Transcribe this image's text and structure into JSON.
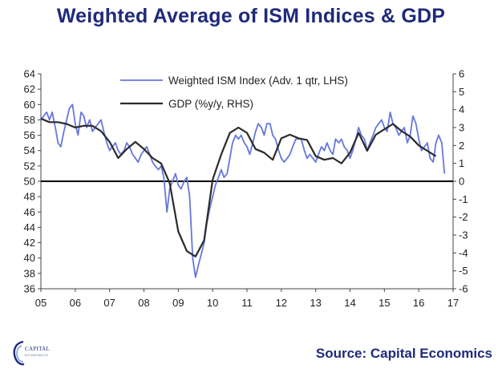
{
  "title": "Weighted Average of ISM Indices & GDP",
  "source": "Source: Capital Economics",
  "logo": {
    "text": "CAPITAL",
    "subtext": "ECONOMICS",
    "color": "#1f2a7a"
  },
  "chart_data": {
    "type": "line",
    "title": "Weighted Average of ISM Indices & GDP",
    "x_range": [
      2005.0,
      2017.0
    ],
    "x_tick_labels": [
      "05",
      "06",
      "07",
      "08",
      "09",
      "10",
      "11",
      "12",
      "13",
      "14",
      "15",
      "16",
      "17"
    ],
    "x_tick_values": [
      2005,
      2006,
      2007,
      2008,
      2009,
      2010,
      2011,
      2012,
      2013,
      2014,
      2015,
      2016,
      2017
    ],
    "y_left": {
      "range": [
        36,
        64
      ],
      "ticks": [
        36,
        38,
        40,
        42,
        44,
        46,
        48,
        50,
        52,
        54,
        56,
        58,
        60,
        62,
        64
      ]
    },
    "y_right": {
      "range": [
        -6,
        6
      ],
      "ticks": [
        -6,
        -5,
        -4,
        -3,
        -2,
        -1,
        0,
        1,
        2,
        3,
        4,
        5,
        6
      ]
    },
    "reference_line": {
      "axis": "left",
      "value": 50
    },
    "legend_placement": "top-center",
    "grid": false,
    "series": [
      {
        "name": "Weighted ISM Index (Adv. 1 qtr, LHS)",
        "axis": "left",
        "color": "#6677dd",
        "x": [
          2005.0,
          2005.08,
          2005.17,
          2005.25,
          2005.33,
          2005.42,
          2005.5,
          2005.58,
          2005.67,
          2005.75,
          2005.83,
          2005.92,
          2006.0,
          2006.08,
          2006.17,
          2006.25,
          2006.33,
          2006.42,
          2006.5,
          2006.58,
          2006.67,
          2006.75,
          2006.83,
          2006.92,
          2007.0,
          2007.08,
          2007.17,
          2007.25,
          2007.33,
          2007.42,
          2007.5,
          2007.58,
          2007.67,
          2007.75,
          2007.83,
          2007.92,
          2008.0,
          2008.08,
          2008.17,
          2008.25,
          2008.33,
          2008.42,
          2008.5,
          2008.58,
          2008.67,
          2008.75,
          2008.83,
          2008.92,
          2009.0,
          2009.08,
          2009.17,
          2009.25,
          2009.33,
          2009.42,
          2009.5,
          2009.58,
          2009.67,
          2009.75,
          2009.83,
          2009.92,
          2010.0,
          2010.08,
          2010.17,
          2010.25,
          2010.33,
          2010.42,
          2010.5,
          2010.58,
          2010.67,
          2010.75,
          2010.83,
          2010.92,
          2011.0,
          2011.08,
          2011.17,
          2011.25,
          2011.33,
          2011.42,
          2011.5,
          2011.58,
          2011.67,
          2011.75,
          2011.83,
          2011.92,
          2012.0,
          2012.08,
          2012.17,
          2012.25,
          2012.33,
          2012.42,
          2012.5,
          2012.58,
          2012.67,
          2012.75,
          2012.83,
          2012.92,
          2013.0,
          2013.08,
          2013.17,
          2013.25,
          2013.33,
          2013.42,
          2013.5,
          2013.58,
          2013.67,
          2013.75,
          2013.83,
          2013.92,
          2014.0,
          2014.08,
          2014.17,
          2014.25,
          2014.33,
          2014.42,
          2014.5,
          2014.58,
          2014.67,
          2014.75,
          2014.83,
          2014.92,
          2015.0,
          2015.08,
          2015.17,
          2015.25,
          2015.33,
          2015.42,
          2015.5,
          2015.58,
          2015.67,
          2015.75,
          2015.83,
          2015.92,
          2016.0,
          2016.08,
          2016.17,
          2016.25,
          2016.33,
          2016.42,
          2016.5,
          2016.58,
          2016.67,
          2016.75
        ],
        "y": [
          58.0,
          58.5,
          59.0,
          58.0,
          59.0,
          57.0,
          55.0,
          54.5,
          56.5,
          58.0,
          59.5,
          60.0,
          57.5,
          56.0,
          59.0,
          58.5,
          57.0,
          58.0,
          56.5,
          57.0,
          57.5,
          58.0,
          56.5,
          55.0,
          54.0,
          54.5,
          55.0,
          54.0,
          53.5,
          54.0,
          55.0,
          54.5,
          53.5,
          53.0,
          52.5,
          53.5,
          54.0,
          54.5,
          53.5,
          52.5,
          52.0,
          51.5,
          52.0,
          50.5,
          46.0,
          49.0,
          50.0,
          51.0,
          49.5,
          49.0,
          50.0,
          50.5,
          48.0,
          40.0,
          37.5,
          39.0,
          40.5,
          42.0,
          44.5,
          46.5,
          48.0,
          49.5,
          50.5,
          51.5,
          50.5,
          51.0,
          53.0,
          55.0,
          56.0,
          55.5,
          56.0,
          55.0,
          54.5,
          53.5,
          55.0,
          56.5,
          57.5,
          57.0,
          56.0,
          57.5,
          57.5,
          56.0,
          55.5,
          54.0,
          53.0,
          52.5,
          53.0,
          53.5,
          54.5,
          55.5,
          55.5,
          55.5,
          54.0,
          53.0,
          53.5,
          53.0,
          52.5,
          53.5,
          54.5,
          54.0,
          55.0,
          54.0,
          53.5,
          55.5,
          55.0,
          55.5,
          54.5,
          54.0,
          53.0,
          54.0,
          55.5,
          57.0,
          56.0,
          55.5,
          54.0,
          55.0,
          56.0,
          57.0,
          57.5,
          58.0,
          57.0,
          56.5,
          59.0,
          57.5,
          57.0,
          56.0,
          56.5,
          57.0,
          55.0,
          56.0,
          58.5,
          57.5,
          55.5,
          54.0,
          54.5,
          55.0,
          53.0,
          52.5,
          55.0,
          56.0,
          55.0,
          51.0
        ]
      },
      {
        "name": "GDP (%y/y, RHS)",
        "axis": "right",
        "color": "#2b2b2b",
        "x": [
          2005.0,
          2005.25,
          2005.5,
          2005.75,
          2006.0,
          2006.25,
          2006.5,
          2006.75,
          2007.0,
          2007.25,
          2007.5,
          2007.75,
          2008.0,
          2008.25,
          2008.5,
          2008.75,
          2009.0,
          2009.25,
          2009.5,
          2009.75,
          2010.0,
          2010.25,
          2010.5,
          2010.75,
          2011.0,
          2011.25,
          2011.5,
          2011.75,
          2012.0,
          2012.25,
          2012.5,
          2012.75,
          2013.0,
          2013.25,
          2013.5,
          2013.75,
          2014.0,
          2014.25,
          2014.5,
          2014.75,
          2015.0,
          2015.25,
          2015.5,
          2015.75,
          2016.0,
          2016.25,
          2016.5
        ],
        "y": [
          3.5,
          3.3,
          3.3,
          3.2,
          3.0,
          3.1,
          3.1,
          2.8,
          2.2,
          1.3,
          1.8,
          2.2,
          1.8,
          1.3,
          1.0,
          -0.1,
          -2.8,
          -3.9,
          -4.2,
          -3.3,
          0.1,
          1.5,
          2.7,
          3.0,
          2.7,
          1.8,
          1.6,
          1.2,
          2.4,
          2.6,
          2.4,
          2.3,
          1.4,
          1.2,
          1.3,
          1.0,
          1.6,
          2.7,
          1.7,
          2.6,
          2.9,
          3.2,
          2.8,
          2.5,
          2.0,
          1.7,
          1.4
        ]
      }
    ]
  }
}
